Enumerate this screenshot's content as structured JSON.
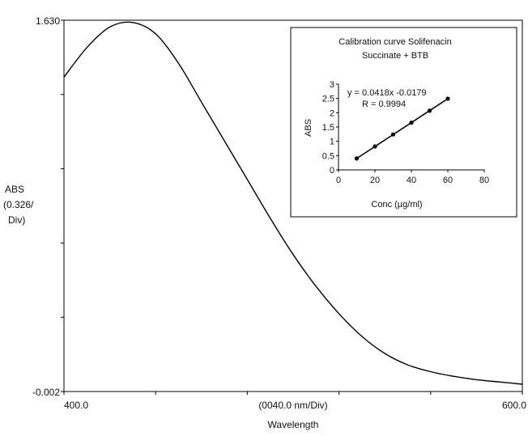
{
  "chart_data": [
    {
      "type": "line",
      "x": [
        400,
        410,
        420,
        430,
        440,
        450,
        460,
        470,
        480,
        490,
        500,
        510,
        520,
        530,
        540,
        550,
        560,
        570,
        580,
        590,
        600
      ],
      "series": [
        {
          "values": [
            1.38,
            1.51,
            1.6,
            1.62,
            1.57,
            1.44,
            1.27,
            1.1,
            0.93,
            0.76,
            0.6,
            0.46,
            0.34,
            0.24,
            0.165,
            0.115,
            0.085,
            0.065,
            0.05,
            0.04,
            0.03
          ]
        }
      ],
      "xlim": [
        400,
        600
      ],
      "ylim": [
        -0.002,
        1.63
      ],
      "xticks": [
        "400.0",
        "(0040.0 nm/Div)",
        "600.0"
      ],
      "yticks": [
        "1.630",
        "-0.002"
      ],
      "xlabel": "Wavelength",
      "ylabel": [
        "ABS",
        "(0.326/",
        "Div)"
      ],
      "grid": false
    },
    {
      "type": "scatter",
      "title": [
        "Calibration curve Solifenacin",
        "Succinate + BTB"
      ],
      "x": [
        10,
        20,
        30,
        40,
        50,
        60
      ],
      "series": [
        {
          "values": [
            0.4,
            0.82,
            1.24,
            1.65,
            2.07,
            2.49
          ]
        }
      ],
      "trendline": {
        "slope": 0.0418,
        "intercept": -0.0179
      },
      "annotations": [
        "y = 0.0418x -0.0179",
        "R = 0.9994"
      ],
      "xlim": [
        0,
        80
      ],
      "ylim": [
        0,
        3
      ],
      "xticks": [
        "0",
        "20",
        "40",
        "60",
        "80"
      ],
      "yticks": [
        "0",
        "0.5",
        "1",
        "1.5",
        "2",
        "2.5",
        "3"
      ],
      "xlabel": "Conc (µg/ml)",
      "ylabel": "ABS",
      "grid": false
    }
  ],
  "colors": {
    "line": "#000000",
    "frame": "#000000",
    "background": "#ffffff"
  }
}
